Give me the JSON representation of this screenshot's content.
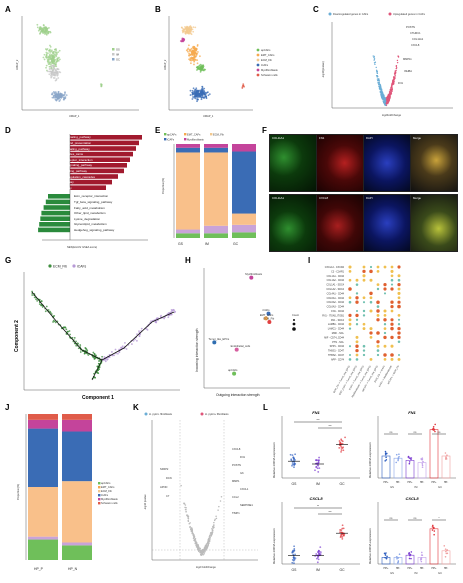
{
  "panels": {
    "A": "A",
    "B": "B",
    "C": "C",
    "D": "D",
    "E": "E",
    "F": "F",
    "G": "G",
    "H": "H",
    "I": "I",
    "J": "J",
    "K": "K",
    "L": "L"
  },
  "panelA": {
    "xlabel": "UMAP_1",
    "ylabel": "UMAP_2",
    "legend": [
      "GS",
      "IM",
      "GC"
    ]
  },
  "panelB": {
    "xlabel": "UMAP_1",
    "ylabel": "UMAP_2",
    "legend": [
      "apCAFs",
      "EMT_CAFs",
      "ECM_Fib",
      "iCAFs",
      "Myofibroblasts",
      "Schwann cells"
    ],
    "colors": [
      "#6fbf5a",
      "#f6a94e",
      "#f3c98f",
      "#3a6cb5",
      "#c4449b",
      "#e05c4a"
    ]
  },
  "panelC": {
    "legend_down": "Downregulated genes in CAFs",
    "legend_up": "Upregulated genes in CAFs",
    "xlabel": "log2FoldChange",
    "ylabel": "-log10(pvalue)",
    "genes": [
      "POSTN",
      "CXCL8",
      "CTHRC1",
      "MMP11",
      "COL11A1",
      "INHBA",
      "FN1"
    ]
  },
  "panelD": {
    "xlabel": "NES(Enrichr GSEA score)",
    "up": [
      "Nod_like_receptor_signaling_pathway",
      "Antigen_processing_and_presentation",
      "Toll_like_receptor_signaling_pathway",
      "Cell_adhesion_molecules_cams",
      "Cytokine_cytokine_receptor_interaction",
      "Rig_i_like_receptor_signaling_pathway",
      "T_cell_receptor_signaling_pathway",
      "Complement_and_coagulation_cascades",
      "Mapk_signaling_pathway",
      "Wnt_signaling_pathway"
    ],
    "down": [
      "Ecm_receptor_interaction",
      "Tgf_beta_signaling_pathway",
      "Fatty_acid_metabolism",
      "Other_lipid_metabolism",
      "Lysine_degradation",
      "Glycerolipid_metabolism",
      "Hedgehog_signaling_pathway"
    ]
  },
  "chart_data": [
    {
      "type": "bar",
      "title": "",
      "ylabel": "Proportion(%)",
      "categories": [
        "GS",
        "IM",
        "GC"
      ],
      "legend": [
        "apCAFs",
        "EMT_CAFs",
        "ECM_Fib",
        "iCAFs",
        "Myofibroblasts"
      ],
      "series": [
        {
          "name": "apCAFs",
          "values": [
            5,
            5,
            6
          ]
        },
        {
          "name": "EMT_CAFs",
          "values": [
            4,
            8,
            8
          ]
        },
        {
          "name": "ECM_Fib",
          "values": [
            82,
            78,
            12
          ]
        },
        {
          "name": "iCAFs",
          "values": [
            5,
            5,
            66
          ]
        },
        {
          "name": "Myofibroblasts",
          "values": [
            4,
            4,
            8
          ]
        }
      ],
      "ylim": [
        0,
        100
      ]
    },
    {
      "type": "bar",
      "title": "",
      "ylabel": "Proportion(%)",
      "categories": [
        "HP_P",
        "HP_N"
      ],
      "legend": [
        "apCAFs",
        "EMT_CAFs",
        "ECM_Fib",
        "iCAFs",
        "Myofibroblasts",
        "Schwann cells"
      ],
      "series": [
        {
          "name": "apCAFs",
          "values": [
            14,
            10
          ]
        },
        {
          "name": "EMT_CAFs",
          "values": [
            2,
            2
          ]
        },
        {
          "name": "ECM_Fib",
          "values": [
            34,
            42
          ]
        },
        {
          "name": "iCAFs",
          "values": [
            40,
            34
          ]
        },
        {
          "name": "Myofibroblasts",
          "values": [
            6,
            8
          ]
        },
        {
          "name": "Schwann cells",
          "values": [
            4,
            4
          ]
        }
      ],
      "ylim": [
        0,
        100
      ]
    },
    {
      "type": "scatter",
      "title": "",
      "xlabel": "Outgoing interaction strength",
      "ylabel": "Incoming interaction strength",
      "points": [
        {
          "label": "Myofibroblasts",
          "x": 0.55,
          "y": 0.92,
          "color": "#c4449b"
        },
        {
          "label": "iCAFs",
          "x": 0.75,
          "y": 0.62,
          "color": "#3a6cb5"
        },
        {
          "label": "EMT_CAFs",
          "x": 0.72,
          "y": 0.58,
          "color": "#f6a94e"
        },
        {
          "label": "ECM_Fib",
          "x": 0.76,
          "y": 0.55,
          "color": "#e04040"
        },
        {
          "label": "Tumor_like_EPCs",
          "x": 0.12,
          "y": 0.38,
          "color": "#2f6db0"
        },
        {
          "label": "Endothelial_cells",
          "x": 0.38,
          "y": 0.32,
          "color": "#d65fa0"
        },
        {
          "label": "apCAFs",
          "x": 0.35,
          "y": 0.12,
          "color": "#6fbf5a"
        }
      ],
      "legend_title": "Count"
    },
    {
      "type": "scatter",
      "title": "",
      "ylabel": "Relative mRNA expression",
      "gene": "FN1",
      "categories": [
        "GS",
        "IM",
        "GC"
      ],
      "means": [
        0.6,
        0.5,
        1.2
      ],
      "sig": [
        "***",
        "***"
      ]
    },
    {
      "type": "scatter",
      "title": "",
      "ylabel": "Relative mRNA expression",
      "gene": "CXCL8",
      "categories": [
        "GS",
        "IM",
        "GC"
      ],
      "means": [
        0.3,
        0.3,
        1.1
      ],
      "sig": [
        "**",
        "***"
      ]
    },
    {
      "type": "bar",
      "title": "",
      "ylabel": "Relative mRNA expression",
      "gene": "FN1",
      "categories": [
        "HP+",
        "HP-",
        "HP+",
        "HP-",
        "HP+",
        "HP-"
      ],
      "groups": [
        "GS",
        "IM",
        "GC"
      ],
      "values": [
        1.0,
        0.9,
        0.8,
        0.7,
        2.2,
        1.0
      ],
      "sig": [
        "ns",
        "ns",
        "ns"
      ]
    },
    {
      "type": "bar",
      "title": "",
      "ylabel": "Relative mRNA expression",
      "gene": "CXCL8",
      "categories": [
        "HP+",
        "HP-",
        "HP+",
        "HP-",
        "HP+",
        "HP-"
      ],
      "groups": [
        "GS",
        "IM",
        "GC"
      ],
      "values": [
        0.3,
        0.3,
        0.4,
        0.3,
        1.6,
        0.6
      ],
      "sig": [
        "ns",
        "ns",
        "*"
      ]
    }
  ],
  "panelF": {
    "row1": [
      "COL11A1",
      "FN1",
      "DAPI",
      "Merge"
    ],
    "row2": [
      "COL11A1",
      "CXCL8",
      "DAPI",
      "Merge"
    ]
  },
  "panelG": {
    "xlabel": "Component 1",
    "ylabel": "Component 2",
    "legend": [
      "ECM_Fib",
      "iCAFs"
    ]
  },
  "panelI": {
    "rows": [
      "CXCL12 - CXCR4",
      "C3 - C3AR1",
      "COL1A1 - CD44",
      "COL1A2 - CD44",
      "COL1A1 - SDC4",
      "COL1A2 - SDC4",
      "COL4A1 - CD44",
      "COL6A1 - CD44",
      "COL6A2 - CD44",
      "COL6A3 - CD44",
      "FN1 - CD44",
      "FN1 - ITGA5_ITGB1",
      "FN1 - SDC4",
      "LAMB1 - CD44",
      "LAMC1 - CD44",
      "MDK - NCL",
      "MIF - CD74_CD44",
      "PTN - NCL",
      "SPP1 - CD44",
      "THBS1 - CD47",
      "THBS2 - CD47",
      "APP - CD74"
    ],
    "cols": [
      "ECM_Fib -> Tumor_like_EPCs",
      "EMT_CAFs -> Tumor_like_EPCs",
      "iCAFs -> Tumor_like_EPCs",
      "Myofibroblasts -> Tumor_like_EPCs",
      "apCAFs -> Tumor_like_EPCs",
      "ECM_Fib -> iCAFs",
      "iCAFs -> Myofibroblasts",
      "apCAFs -> ECM_Fib"
    ]
  },
  "panelK": {
    "legend_left": "H. pylori- fibroblasts",
    "legend_right": "H. pylori+ fibroblasts",
    "xlabel": "log2 FoldChange",
    "ylabel": "-log10 pvalue",
    "genes_left": [
      "SFRP2",
      "DCN",
      "APOD",
      "C7"
    ],
    "genes_right": [
      "CXCL8",
      "FN1",
      "POSTN",
      "IL6",
      "MMP1",
      "CXCL1",
      "CCL2",
      "SERPINE1",
      "TIMP1"
    ]
  }
}
